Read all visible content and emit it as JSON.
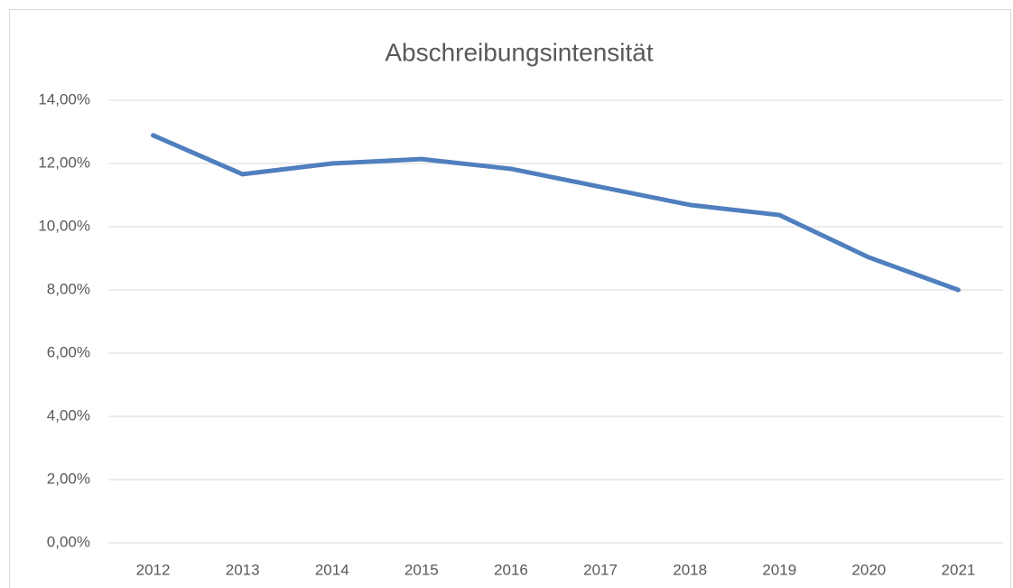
{
  "chart_data": {
    "type": "line",
    "title": "Abschreibungsintensität",
    "categories": [
      "2012",
      "2013",
      "2014",
      "2015",
      "2016",
      "2017",
      "2018",
      "2019",
      "2020",
      "2021"
    ],
    "series": [
      {
        "name": "Abschreibungsintensität",
        "color": "#4f7fbe",
        "values": [
          12.89,
          11.66,
          12.0,
          12.14,
          11.83,
          11.26,
          10.69,
          10.37,
          9.03,
          8.0
        ]
      }
    ],
    "ylim": [
      0,
      14
    ],
    "yticks": [
      {
        "value": 0,
        "label": "0,00%"
      },
      {
        "value": 2,
        "label": "2,00%"
      },
      {
        "value": 4,
        "label": "4,00%"
      },
      {
        "value": 6,
        "label": "6,00%"
      },
      {
        "value": 8,
        "label": "8,00%"
      },
      {
        "value": 10,
        "label": "10,00%"
      },
      {
        "value": 12,
        "label": "12,00%"
      },
      {
        "value": 14,
        "label": "14,00%"
      }
    ],
    "grid": true
  }
}
